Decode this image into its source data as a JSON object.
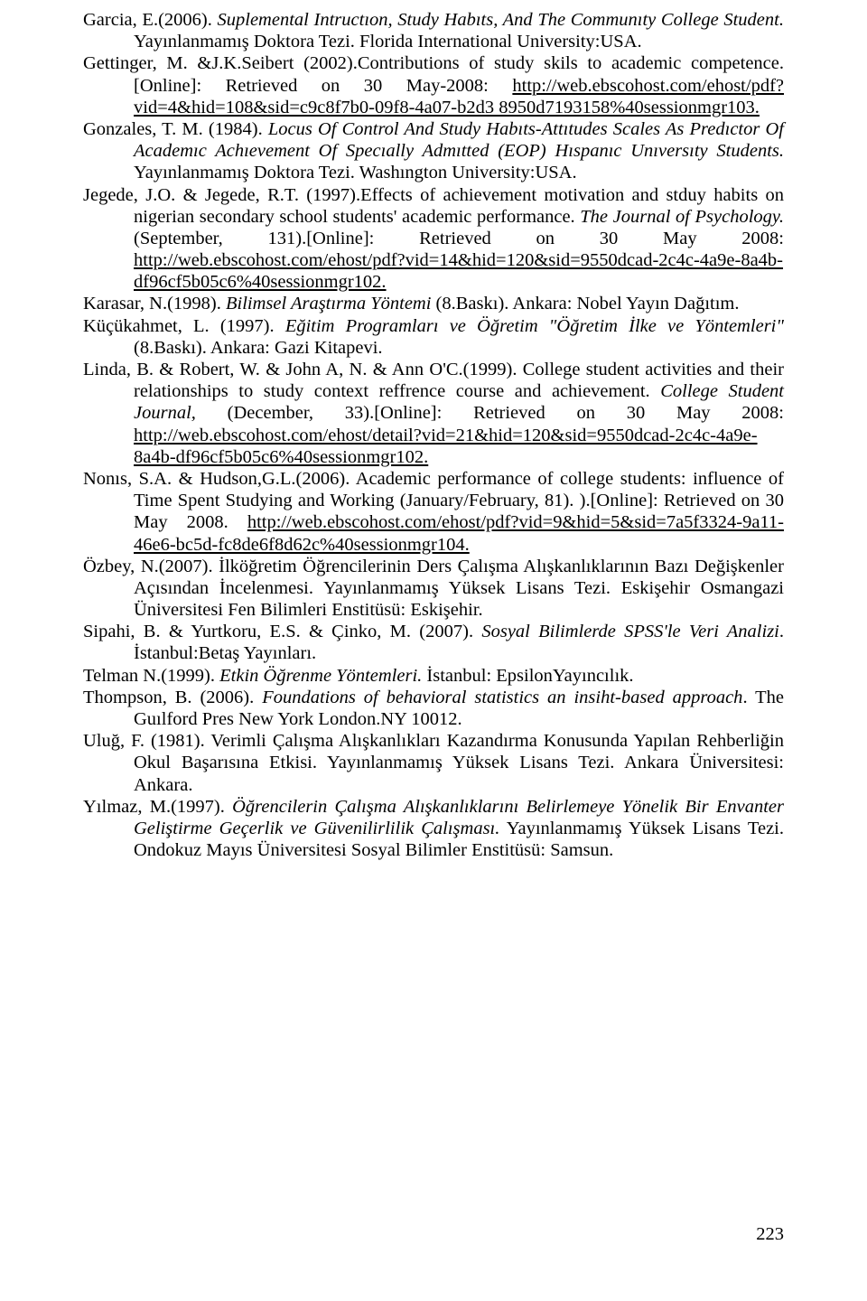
{
  "page_number": "223",
  "references": [
    {
      "html": "Garcia, E.(2006). <span class='i'>Suplemental Intructıon, Study Habıts, And The Communıty College Student.</span> Yayınlanmamış Doktora Tezi. Florida International University:USA."
    },
    {
      "html": "Gettinger, M. &amp;J.K.Seibert (2002).Contributions of study skils to academic competence.[Online]: Retrieved on 30 May-2008: <span class='u'>http://web.ebscohost.com/ehost/pdf?vid=4&amp;hid=108&amp;sid=c9c8f7b0-09f8-4a07-b2d3 8950d7193158%40sessionmgr103.</span>"
    },
    {
      "html": "Gonzales, T. M. (1984). <span class='i'>Locus Of Control And Study Habıts-Attıtudes Scales As Predıctor Of Academıc Achıevement Of Specıally Admıtted (EOP) Hıspanıc Unıversıty Students.</span> Yayınlanmamış Doktora Tezi. Washıngton University:USA."
    },
    {
      "html": "Jegede, J.O. &amp; Jegede, R.T. (1997).Effects of achievement motivation and stduy habits on nigerian secondary school students' academic performance. <span class='i'>The Journal of Psychology.</span> (September, 131).[Online]: Retrieved on 30 May 2008: <span class='u'>http://web.ebscohost.com/ehost/pdf?vid=14&amp;hid=120&amp;sid=9550dcad-2c4c-4a9e-8a4b-df96cf5b05c6%40sessionmgr102.</span>"
    },
    {
      "html": "Karasar, N.(1998). <span class='i'>Bilimsel Araştırma Yöntemi</span> (8.Baskı). Ankara: Nobel Yayın Dağıtım."
    },
    {
      "html": "Küçükahmet, L. (1997). <span class='i'>Eğitim Programları ve Öğretim \"Öğretim İlke ve Yöntemleri\"</span>(8.Baskı). Ankara: Gazi Kitapevi."
    },
    {
      "html": "Linda, B. &amp; Robert, W. &amp; John A, N. &amp; Ann O'C.(1999). College student activities and their relationships to study context reffrence course and achievement. <span class='i'>College Student Journal,</span> (December, 33).[Online]: Retrieved on 30 May 2008: <span class='u'>http://web.ebscohost.com/ehost/detail?vid=21&amp;hid=120&amp;sid=9550dcad-2c4c-4a9e-8a4b-df96cf5b05c6%40sessionmgr102.</span>"
    },
    {
      "html": "Nonıs, S.A. &amp; Hudson,G.L.(2006). Academic performance of college students: influence of Time Spent Studying and Working (January/February, 81). ).[Online]: Retrieved on 30 May 2008. <span class='u'>http://web.ebscohost.com/ehost/pdf?vid=9&amp;hid=5&amp;sid=7a5f3324-9a11-46e6-bc5d-fc8de6f8d62c%40sessionmgr104.</span>"
    },
    {
      "html": "Özbey, N.(2007). İlköğretim Öğrencilerinin Ders Çalışma Alışkanlıklarının Bazı Değişkenler Açısından İncelenmesi. Yayınlanmamış Yüksek Lisans Tezi. Eskişehir Osmangazi Üniversitesi Fen Bilimleri Enstitüsü: Eskişehir."
    },
    {
      "html": "Sipahi, B. &amp; Yurtkoru, E.S. &amp; Çinko, M. (2007). <span class='i'>Sosyal Bilimlerde SPSS'le Veri Analizi</span>. İstanbul:Betaş Yayınları."
    },
    {
      "html": "Telman N.(1999). <span class='i'>Etkin Öğrenme Yöntemleri.</span> İstanbul: EpsilonYayıncılık."
    },
    {
      "html": "Thompson, B. (2006). <span class='i'>Foundations of behavioral statistics an insiht-based approach</span>. The Guılford Pres New York London.NY 10012."
    },
    {
      "html": "Uluğ, F. (1981). Verimli Çalışma Alışkanlıkları Kazandırma Konusunda Yapılan Rehberliğin Okul Başarısına Etkisi. Yayınlanmamış Yüksek Lisans Tezi. Ankara Üniversitesi: Ankara."
    },
    {
      "html": "Yılmaz, M.(1997). <span class='i'>Öğrencilerin Çalışma Alışkanlıklarını Belirlemeye Yönelik Bir Envanter Geliştirme Geçerlik ve Güvenilirlilik Çalışması.</span> Yayınlanmamış Yüksek Lisans Tezi. Ondokuz Mayıs Üniversitesi Sosyal Bilimler Enstitüsü: Samsun."
    }
  ]
}
